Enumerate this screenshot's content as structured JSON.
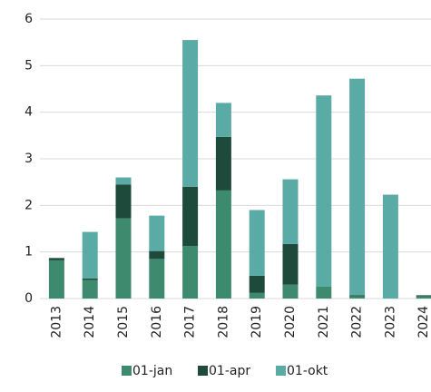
{
  "chart_data": {
    "type": "stacked_bar",
    "categories": [
      "2013",
      "2014",
      "2015",
      "2016",
      "2017",
      "2018",
      "2019",
      "2020",
      "2021",
      "2022",
      "2023",
      "2024"
    ],
    "series": [
      {
        "name": "01-jan",
        "color": "#3d8a6e",
        "values": [
          0.82,
          0.4,
          1.72,
          0.85,
          1.13,
          2.32,
          0.12,
          0.3,
          0.26,
          0.05,
          0,
          0.05
        ]
      },
      {
        "name": "01-apr",
        "color": "#1d4a3a",
        "values": [
          0.05,
          0.03,
          0.73,
          0.17,
          1.27,
          1.15,
          0.37,
          0.87,
          0,
          0.02,
          0,
          0.02
        ]
      },
      {
        "name": "01-okt",
        "color": "#5aaaa6",
        "values": [
          0,
          1.0,
          0.15,
          0.76,
          3.15,
          0.73,
          1.41,
          1.39,
          4.1,
          4.65,
          2.23,
          0
        ]
      }
    ],
    "ylim": [
      0,
      6
    ],
    "yticks": [
      0,
      1,
      2,
      3,
      4,
      5,
      6
    ],
    "grid": true,
    "legend": "bottom"
  }
}
